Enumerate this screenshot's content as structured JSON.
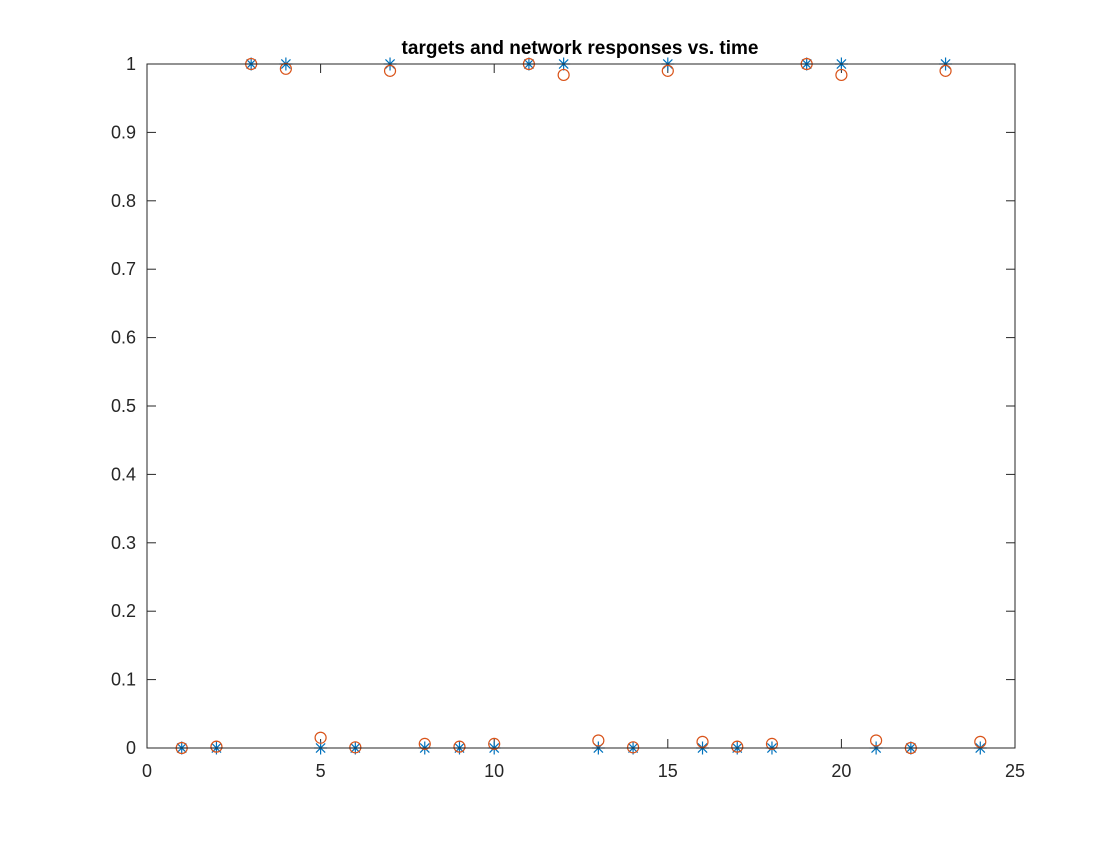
{
  "chart_data": {
    "type": "scatter",
    "title": "targets and network responses vs. time",
    "xlabel": "",
    "ylabel": "",
    "xlim": [
      0,
      25
    ],
    "ylim": [
      0,
      1
    ],
    "xticks": [
      "0",
      "5",
      "10",
      "15",
      "20",
      "25"
    ],
    "yticks": [
      "0",
      "0.1",
      "0.2",
      "0.3",
      "0.4",
      "0.5",
      "0.6",
      "0.7",
      "0.8",
      "0.9",
      "1"
    ],
    "grid": false,
    "colors": {
      "targets": "#0072BD",
      "responses": "#D95319"
    },
    "series": [
      {
        "marker": "asterisk",
        "x": [
          1,
          2,
          3,
          4,
          5,
          6,
          7,
          8,
          9,
          10,
          11,
          12,
          13,
          14,
          15,
          16,
          17,
          18,
          19,
          20,
          21,
          22,
          23,
          24
        ],
        "y": [
          0,
          0,
          1,
          1,
          0,
          0,
          1,
          0,
          0,
          0,
          1,
          1,
          0,
          0,
          1,
          0,
          0,
          0,
          1,
          1,
          0,
          0,
          1,
          0
        ]
      },
      {
        "marker": "circle",
        "x": [
          1,
          2,
          3,
          4,
          5,
          6,
          7,
          8,
          9,
          10,
          11,
          12,
          13,
          14,
          15,
          16,
          17,
          18,
          19,
          20,
          21,
          22,
          23,
          24
        ],
        "y": [
          0.0,
          0.002,
          1.0,
          0.993,
          0.015,
          0.001,
          0.99,
          0.006,
          0.002,
          0.006,
          1.0,
          0.984,
          0.011,
          0.001,
          0.99,
          0.009,
          0.002,
          0.006,
          1.0,
          0.984,
          0.011,
          0.0,
          0.99,
          0.009
        ]
      }
    ]
  }
}
